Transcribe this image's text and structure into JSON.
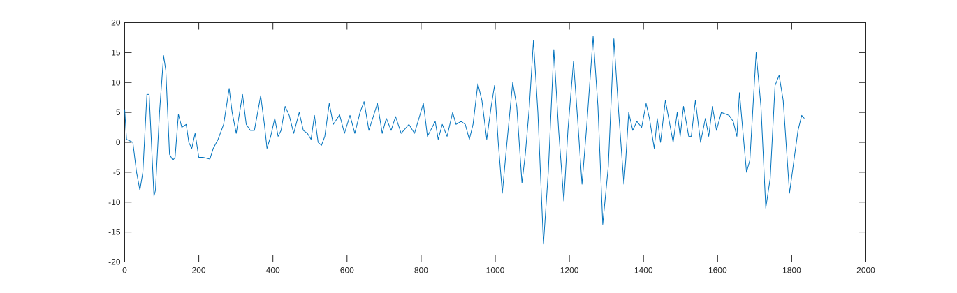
{
  "chart_data": {
    "type": "line",
    "x": [
      0,
      5,
      22,
      32,
      41,
      49,
      60,
      66,
      79,
      83,
      94,
      105,
      111,
      121,
      130,
      136,
      145,
      154,
      166,
      173,
      181,
      190,
      200,
      211,
      230,
      239,
      252,
      267,
      282,
      290,
      301,
      318,
      328,
      339,
      350,
      367,
      377,
      384,
      394,
      405,
      414,
      422,
      433,
      444,
      456,
      471,
      482,
      493,
      503,
      512,
      522,
      531,
      540,
      552,
      563,
      580,
      593,
      608,
      621,
      635,
      646,
      659,
      682,
      695,
      706,
      719,
      731,
      746,
      767,
      782,
      806,
      817,
      838,
      846,
      857,
      870,
      885,
      894,
      908,
      919,
      930,
      940,
      953,
      964,
      977,
      989,
      998,
      1008,
      1019,
      1030,
      1047,
      1058,
      1072,
      1081,
      1092,
      1103,
      1115,
      1130,
      1143,
      1158,
      1171,
      1185,
      1196,
      1211,
      1222,
      1234,
      1247,
      1264,
      1277,
      1290,
      1305,
      1320,
      1333,
      1347,
      1352,
      1360,
      1371,
      1382,
      1395,
      1407,
      1416,
      1429,
      1437,
      1446,
      1459,
      1471,
      1480,
      1491,
      1499,
      1508,
      1522,
      1529,
      1540,
      1554,
      1567,
      1576,
      1586,
      1597,
      1610,
      1631,
      1642,
      1652,
      1659,
      1668,
      1678,
      1687,
      1704,
      1717,
      1730,
      1742,
      1755,
      1766,
      1777,
      1794,
      1806,
      1817,
      1827,
      1834
    ],
    "values": [
      5.5,
      0.5,
      0,
      -5,
      -8,
      -5,
      8,
      8,
      -9,
      -8,
      5,
      14.5,
      12,
      -2,
      -3,
      -2.5,
      4.7,
      2.5,
      3,
      0,
      -1,
      1.5,
      -2.5,
      -2.5,
      -2.8,
      -1,
      0.5,
      3,
      9,
      5,
      1.5,
      8,
      3,
      2,
      2,
      7.8,
      3,
      -1,
      1,
      4,
      1,
      2,
      6,
      4.5,
      1.5,
      5,
      2,
      1.5,
      0.5,
      4.5,
      0,
      -0.5,
      1,
      6.5,
      3,
      4.6,
      1.5,
      4.5,
      1.5,
      5,
      6.8,
      2,
      6.5,
      1.5,
      4,
      2,
      4.3,
      1.5,
      3,
      1.5,
      6.5,
      1,
      3.5,
      0.5,
      3,
      1,
      5,
      3,
      3.5,
      3,
      0.5,
      3,
      9.8,
      7,
      0.5,
      6,
      9.5,
      0,
      -8.5,
      -1,
      10,
      6,
      -6.8,
      -2,
      6,
      17,
      5,
      -17,
      -5,
      15.5,
      2,
      -9.8,
      2,
      13.5,
      4,
      -7,
      3,
      17.7,
      6,
      -13.7,
      -4,
      17.3,
      5,
      -7,
      -3,
      5,
      2,
      3.5,
      2.5,
      6.5,
      4,
      -1,
      4,
      0,
      7,
      3,
      0,
      5,
      1,
      6,
      1,
      1,
      7,
      0,
      4,
      1,
      6,
      2,
      5,
      4.5,
      3.5,
      1,
      8.3,
      2,
      -5,
      -3,
      15,
      6,
      -11,
      -6,
      9.5,
      11.2,
      7,
      -8.5,
      -3,
      2,
      4.5,
      4
    ],
    "color": "#0072bd",
    "xlim": [
      0,
      2000
    ],
    "xticks": [
      0,
      200,
      400,
      600,
      800,
      1000,
      1200,
      1400,
      1600,
      1800,
      2000
    ],
    "ylim": [
      -20,
      20
    ],
    "yticks": [
      -20,
      -15,
      -10,
      -5,
      0,
      5,
      10,
      15,
      20
    ]
  }
}
